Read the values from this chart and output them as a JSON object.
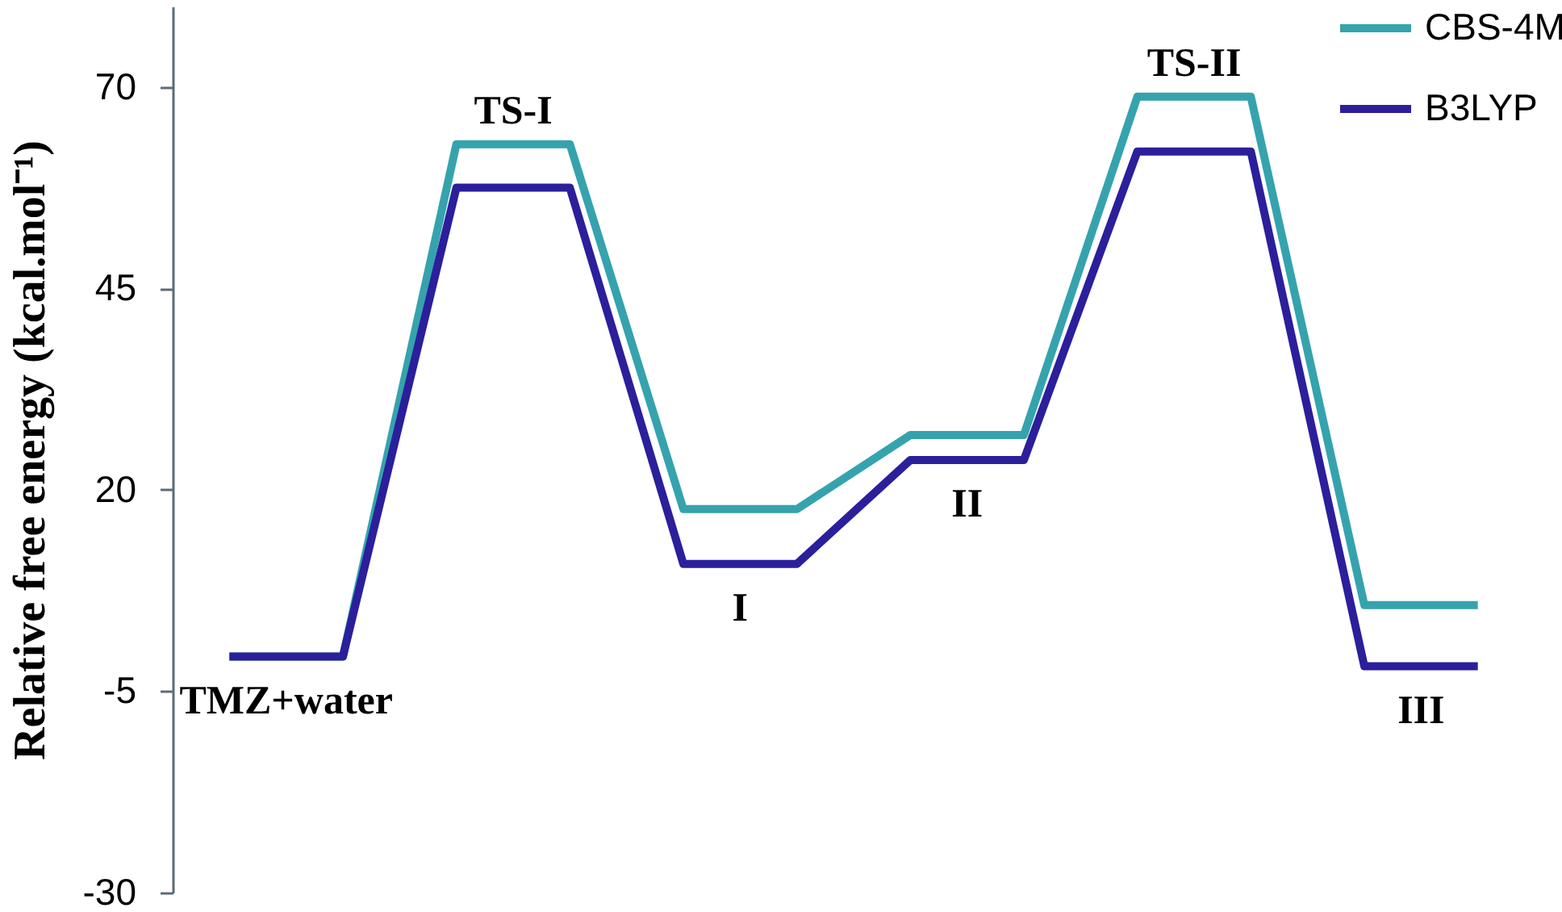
{
  "chart_data": {
    "type": "line",
    "ylabel": "Relative free energy (kcal.mol⁻¹)",
    "categories": [
      null,
      null,
      null,
      null,
      null,
      null,
      null,
      null,
      null,
      null,
      null,
      null
    ],
    "series": [
      {
        "name": "CBS-4M",
        "color": "#35a3ad",
        "values": [
          -0.7,
          -0.7,
          62.9,
          62.9,
          17.6,
          17.6,
          26.8,
          26.8,
          68.8,
          68.8,
          5.7,
          5.7
        ]
      },
      {
        "name": "B3LYP",
        "color": "#2b1f9b",
        "values": [
          -0.7,
          -0.7,
          57.5,
          57.5,
          10.8,
          10.8,
          23.7,
          23.7,
          62,
          62,
          -1.9,
          -1.9
        ]
      }
    ],
    "ylim": [
      -30,
      80
    ],
    "yticks": [
      -30,
      -5,
      20,
      45,
      70
    ],
    "legend": "top right",
    "tick_labels": "y",
    "marker": "none",
    "line_style": "solid",
    "annotations": [
      "TMZ+water",
      "TS-I",
      "I",
      "II",
      "TS-II",
      "III"
    ]
  }
}
